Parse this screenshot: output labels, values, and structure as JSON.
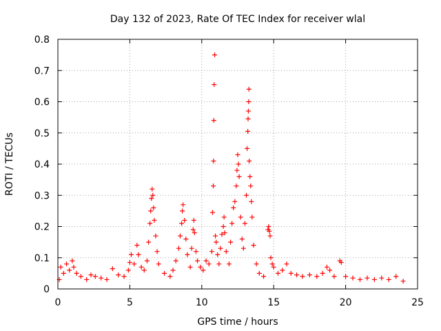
{
  "chart_data": {
    "type": "scatter",
    "title": "Day 132 of 2023, Rate Of TEC Index for receiver wlal",
    "xlabel": "GPS time / hours",
    "ylabel": "ROTI / TECUs",
    "xlim": [
      0,
      25
    ],
    "ylim": [
      0,
      0.8
    ],
    "x_ticks": [
      0,
      5,
      10,
      15,
      20,
      25
    ],
    "y_ticks": [
      0,
      0.1,
      0.2,
      0.3,
      0.4,
      0.5,
      0.6,
      0.7,
      0.8
    ],
    "grid": true,
    "marker": "+",
    "color": "#ff0000",
    "series": [
      {
        "points": [
          [
            0.1,
            0.03
          ],
          [
            0.2,
            0.07
          ],
          [
            0.4,
            0.05
          ],
          [
            0.6,
            0.08
          ],
          [
            0.8,
            0.06
          ],
          [
            1.0,
            0.09
          ],
          [
            1.1,
            0.07
          ],
          [
            1.3,
            0.05
          ],
          [
            1.6,
            0.04
          ],
          [
            2.0,
            0.03
          ],
          [
            2.3,
            0.045
          ],
          [
            2.6,
            0.04
          ],
          [
            3.0,
            0.035
          ],
          [
            3.4,
            0.03
          ],
          [
            3.8,
            0.065
          ],
          [
            4.2,
            0.045
          ],
          [
            4.6,
            0.04
          ],
          [
            4.9,
            0.06
          ],
          [
            5.0,
            0.085
          ],
          [
            5.1,
            0.11
          ],
          [
            5.3,
            0.08
          ],
          [
            5.5,
            0.14
          ],
          [
            5.6,
            0.11
          ],
          [
            5.8,
            0.07
          ],
          [
            6.0,
            0.06
          ],
          [
            6.2,
            0.09
          ],
          [
            6.3,
            0.15
          ],
          [
            6.4,
            0.21
          ],
          [
            6.45,
            0.25
          ],
          [
            6.5,
            0.29
          ],
          [
            6.55,
            0.32
          ],
          [
            6.6,
            0.3
          ],
          [
            6.65,
            0.26
          ],
          [
            6.7,
            0.22
          ],
          [
            6.8,
            0.17
          ],
          [
            6.9,
            0.12
          ],
          [
            7.0,
            0.08
          ],
          [
            7.4,
            0.05
          ],
          [
            7.8,
            0.04
          ],
          [
            8.0,
            0.06
          ],
          [
            8.2,
            0.09
          ],
          [
            8.4,
            0.13
          ],
          [
            8.5,
            0.17
          ],
          [
            8.6,
            0.21
          ],
          [
            8.65,
            0.25
          ],
          [
            8.7,
            0.27
          ],
          [
            8.8,
            0.22
          ],
          [
            8.9,
            0.16
          ],
          [
            9.0,
            0.11
          ],
          [
            9.2,
            0.07
          ],
          [
            9.3,
            0.13
          ],
          [
            9.4,
            0.19
          ],
          [
            9.45,
            0.22
          ],
          [
            9.5,
            0.18
          ],
          [
            9.6,
            0.12
          ],
          [
            9.7,
            0.09
          ],
          [
            9.9,
            0.07
          ],
          [
            10.1,
            0.06
          ],
          [
            10.3,
            0.09
          ],
          [
            10.5,
            0.08
          ],
          [
            10.7,
            0.12
          ],
          [
            10.75,
            0.245
          ],
          [
            10.8,
            0.33
          ],
          [
            10.82,
            0.41
          ],
          [
            10.84,
            0.54
          ],
          [
            10.86,
            0.655
          ],
          [
            10.9,
            0.75
          ],
          [
            10.95,
            0.17
          ],
          [
            11.0,
            0.15
          ],
          [
            11.1,
            0.11
          ],
          [
            11.2,
            0.08
          ],
          [
            11.3,
            0.13
          ],
          [
            11.4,
            0.175
          ],
          [
            11.5,
            0.2
          ],
          [
            11.55,
            0.23
          ],
          [
            11.6,
            0.18
          ],
          [
            11.7,
            0.12
          ],
          [
            11.9,
            0.08
          ],
          [
            12.0,
            0.15
          ],
          [
            12.1,
            0.21
          ],
          [
            12.2,
            0.26
          ],
          [
            12.3,
            0.28
          ],
          [
            12.4,
            0.33
          ],
          [
            12.45,
            0.38
          ],
          [
            12.5,
            0.43
          ],
          [
            12.55,
            0.4
          ],
          [
            12.6,
            0.36
          ],
          [
            12.7,
            0.23
          ],
          [
            12.8,
            0.16
          ],
          [
            12.9,
            0.13
          ],
          [
            13.0,
            0.21
          ],
          [
            13.1,
            0.3
          ],
          [
            13.15,
            0.45
          ],
          [
            13.2,
            0.505
          ],
          [
            13.22,
            0.545
          ],
          [
            13.24,
            0.57
          ],
          [
            13.26,
            0.6
          ],
          [
            13.28,
            0.64
          ],
          [
            13.3,
            0.41
          ],
          [
            13.35,
            0.36
          ],
          [
            13.4,
            0.33
          ],
          [
            13.45,
            0.28
          ],
          [
            13.5,
            0.23
          ],
          [
            13.6,
            0.14
          ],
          [
            13.8,
            0.08
          ],
          [
            14.0,
            0.05
          ],
          [
            14.3,
            0.04
          ],
          [
            14.6,
            0.19
          ],
          [
            14.65,
            0.2
          ],
          [
            14.7,
            0.185
          ],
          [
            14.75,
            0.17
          ],
          [
            14.8,
            0.1
          ],
          [
            14.9,
            0.08
          ],
          [
            15.0,
            0.07
          ],
          [
            15.3,
            0.05
          ],
          [
            15.6,
            0.06
          ],
          [
            15.9,
            0.08
          ],
          [
            16.2,
            0.05
          ],
          [
            16.6,
            0.045
          ],
          [
            17.0,
            0.04
          ],
          [
            17.5,
            0.045
          ],
          [
            18.0,
            0.04
          ],
          [
            18.4,
            0.05
          ],
          [
            18.7,
            0.07
          ],
          [
            18.9,
            0.06
          ],
          [
            19.2,
            0.04
          ],
          [
            19.6,
            0.09
          ],
          [
            19.7,
            0.085
          ],
          [
            20.0,
            0.04
          ],
          [
            20.5,
            0.035
          ],
          [
            21.0,
            0.03
          ],
          [
            21.5,
            0.035
          ],
          [
            22.0,
            0.03
          ],
          [
            22.5,
            0.035
          ],
          [
            23.0,
            0.03
          ],
          [
            23.5,
            0.04
          ],
          [
            24.0,
            0.025
          ]
        ]
      }
    ]
  }
}
